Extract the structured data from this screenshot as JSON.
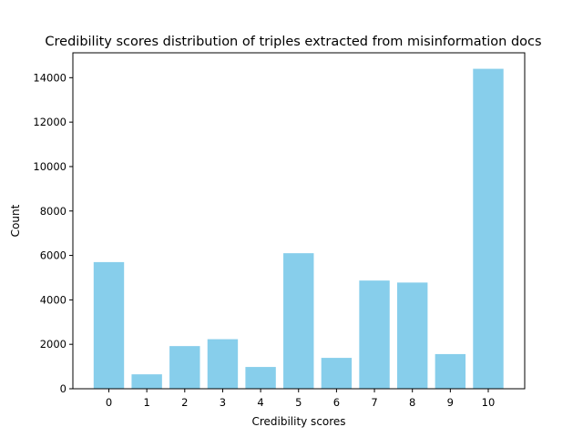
{
  "chart_data": {
    "type": "bar",
    "title": "Credibility scores distribution of triples extracted from misinformation docs",
    "xlabel": "Credibility scores",
    "ylabel": "Count",
    "categories": [
      "0",
      "1",
      "2",
      "3",
      "4",
      "5",
      "6",
      "7",
      "8",
      "9",
      "10"
    ],
    "values": [
      5700,
      650,
      1920,
      2230,
      980,
      6100,
      1390,
      4870,
      4780,
      1560,
      14400
    ],
    "ylim": [
      0,
      15120
    ],
    "yticks": [
      0,
      2000,
      4000,
      6000,
      8000,
      10000,
      12000,
      14000
    ],
    "ytick_labels": [
      "0",
      "2000",
      "4000",
      "6000",
      "8000",
      "10000",
      "12000",
      "14000"
    ],
    "bar_color": "#87ceeb",
    "grid": false,
    "legend": "none"
  }
}
